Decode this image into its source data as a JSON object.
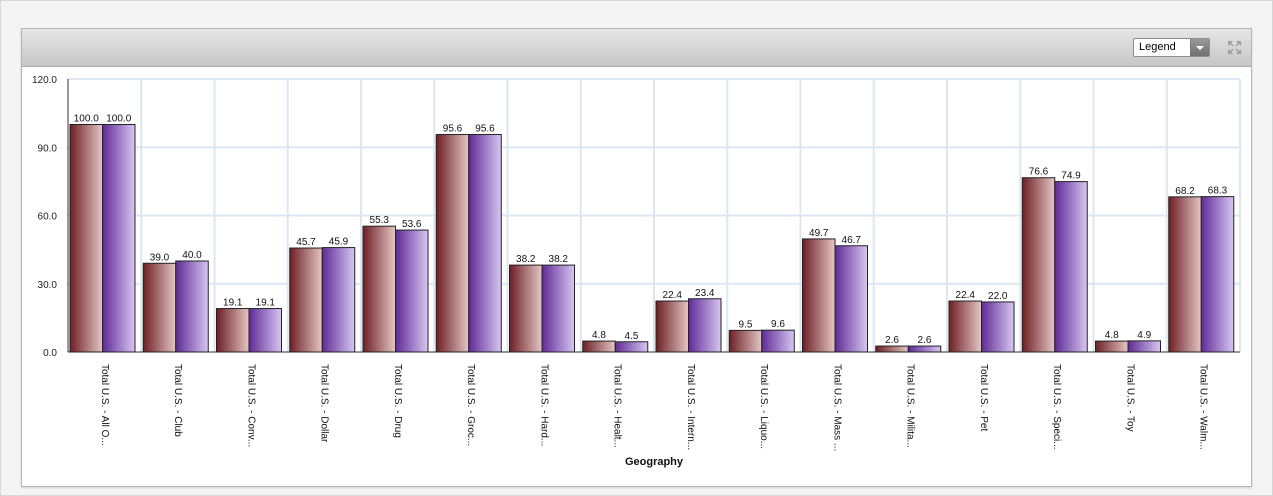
{
  "toolbar": {
    "legend_select": "Legend",
    "maximize_icon": "maximize-icon"
  },
  "colors": {
    "series1_dark": "#6e1f24",
    "series1_light": "#e4c7c6",
    "series2_dark": "#5f2a96",
    "series2_light": "#d7c6f2"
  },
  "chart_data": {
    "type": "bar",
    "title": "",
    "xlabel": "Geography",
    "ylabel": "",
    "ylim": [
      0,
      120
    ],
    "yticks": [
      "0.0",
      "30.0",
      "60.0",
      "90.0",
      "120.0"
    ],
    "grid": true,
    "categories": [
      "Total U.S. - All O...",
      "Total U.S. - Club",
      "Total U.S. - Conv...",
      "Total U.S. - Dollar",
      "Total U.S. - Drug",
      "Total U.S. - Groc...",
      "Total U.S. - Hard...",
      "Total U.S. - Healt...",
      "Total U.S. - Intern...",
      "Total U.S. - Liquo...",
      "Total U.S. - Mass ...",
      "Total U.S. - Milita...",
      "Total U.S. - Pet",
      "Total U.S. - Speci...",
      "Total U.S. - Toy",
      "Total U.S. - Walm..."
    ],
    "series": [
      {
        "values": [
          100.0,
          39.0,
          19.1,
          45.7,
          55.3,
          95.6,
          38.2,
          4.8,
          22.4,
          9.5,
          49.7,
          2.6,
          22.4,
          76.6,
          4.8,
          68.2
        ],
        "labels": [
          "100.0",
          "39.0",
          "19.1",
          "45.7",
          "55.3",
          "95.6",
          "38.2",
          "4.8",
          "22.4",
          "9.5",
          "49.7",
          "2.6",
          "22.4",
          "76.6",
          "4.8",
          "68.2"
        ]
      },
      {
        "values": [
          100.0,
          40.0,
          19.1,
          45.9,
          53.6,
          95.6,
          38.2,
          4.5,
          23.4,
          9.6,
          46.7,
          2.6,
          22.0,
          74.9,
          4.9,
          68.3
        ],
        "labels": [
          "100.0",
          "40.0",
          "19.1",
          "45.9",
          "53.6",
          "95.6",
          "38.2",
          "4.5",
          "23.4",
          "9.6",
          "46.7",
          "2.6",
          "22.0",
          "74.9",
          "4.9",
          "68.3"
        ]
      }
    ]
  }
}
